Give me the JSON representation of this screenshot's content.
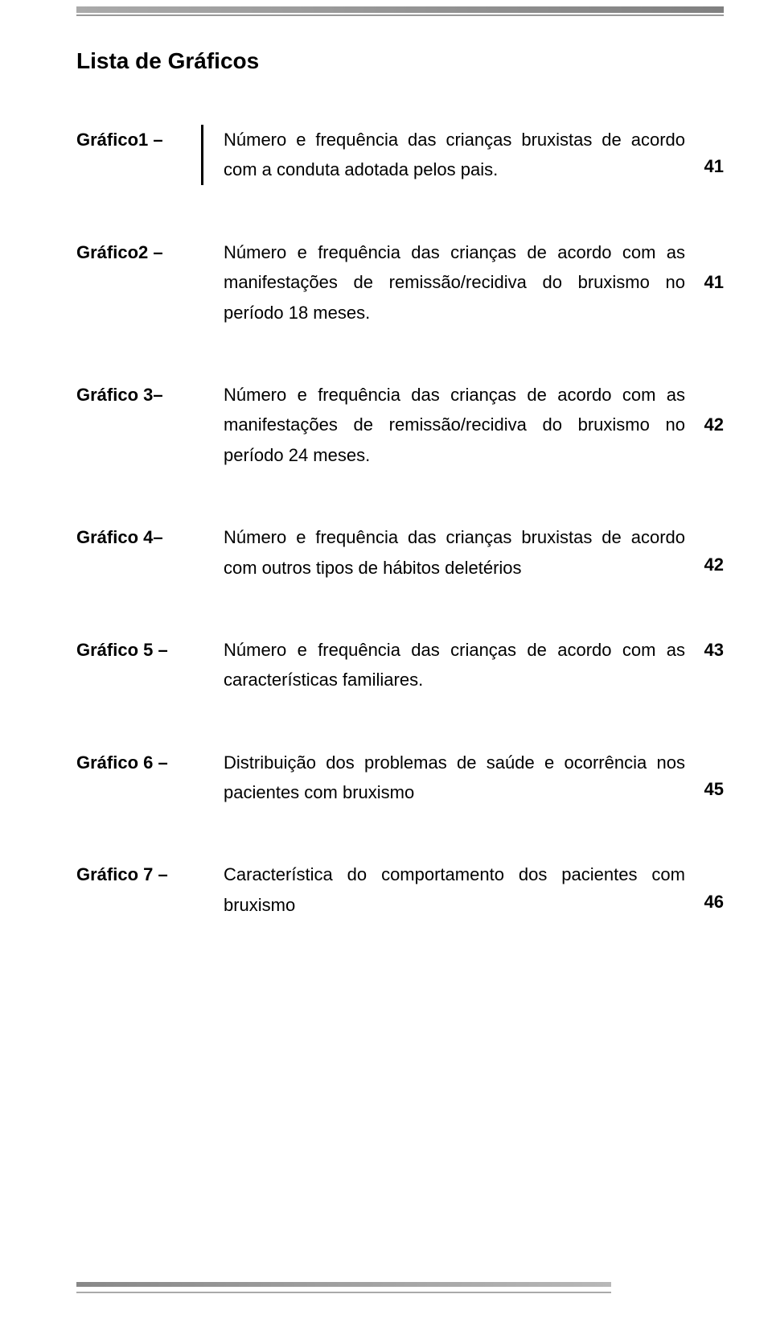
{
  "page_title": "Lista de Gráficos",
  "top_border": {
    "gradient_start": "#aaaaaa",
    "gradient_end": "#808080",
    "line_color": "#999999"
  },
  "bottom_border": {
    "gradient_start": "#888888",
    "gradient_end": "#b8b8b8",
    "line_color": "#aaaaaa"
  },
  "typography": {
    "title_fontsize": 28,
    "body_fontsize": 22,
    "font_family": "Arial",
    "text_color": "#000000",
    "background_color": "#ffffff",
    "line_height": 1.7
  },
  "entries": [
    {
      "label": "Gráfico1 –",
      "description": "Número e frequência das crianças bruxistas de acordo com a conduta adotada pelos pais.",
      "page": "41",
      "has_divider": true
    },
    {
      "label": "Gráfico2 –",
      "description": "Número e frequência das crianças de acordo com as manifestações de remissão/recidiva do bruxismo no período 18 meses.",
      "page": "41",
      "has_divider": false
    },
    {
      "label": "Gráfico 3–",
      "description": "Número e frequência das crianças de acordo com as manifestações de remissão/recidiva do bruxismo no período 24 meses.",
      "page": "42",
      "has_divider": false
    },
    {
      "label": "Gráfico 4–",
      "description": "Número e frequência das crianças bruxistas de acordo com outros tipos de hábitos deletérios",
      "page": "42",
      "has_divider": false
    },
    {
      "label": "Gráfico 5 –",
      "description": "Número e frequência das crianças de acordo com as características familiares.",
      "page": "43",
      "has_divider": false
    },
    {
      "label": "Gráfico 6 –",
      "description": "Distribuição dos problemas de saúde e ocorrência nos pacientes com bruxismo",
      "page": "45",
      "has_divider": false
    },
    {
      "label": "Gráfico 7 –",
      "description": "Característica do comportamento dos pacientes com bruxismo",
      "page": "46",
      "has_divider": false
    }
  ]
}
